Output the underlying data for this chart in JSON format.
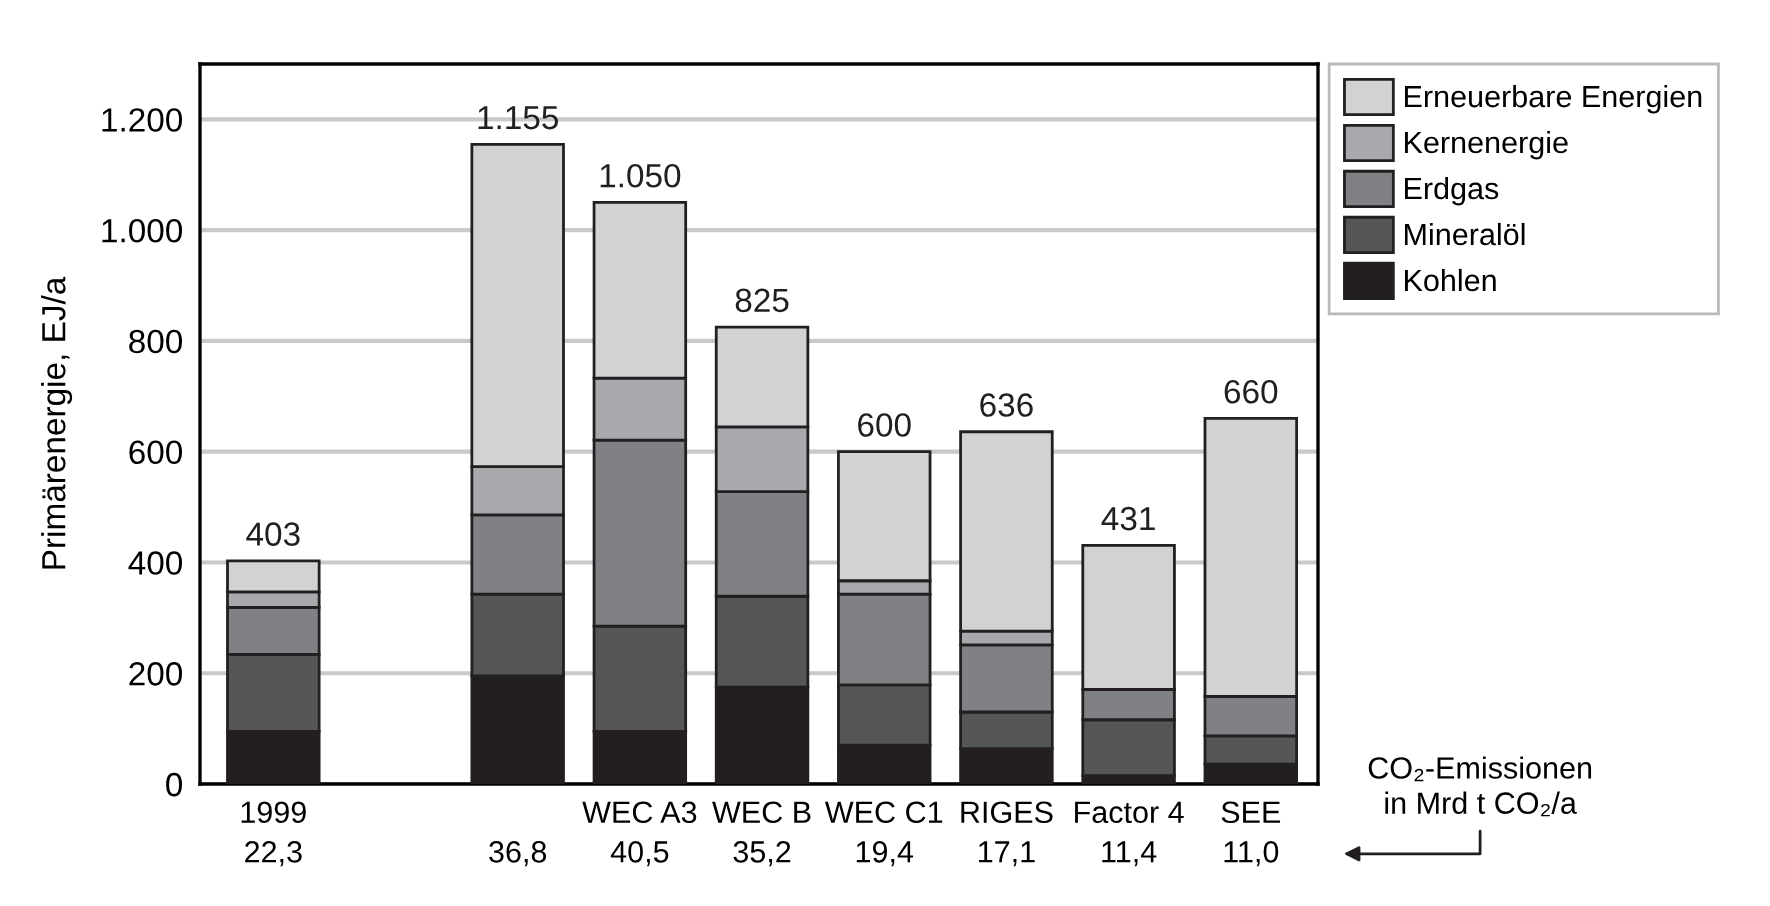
{
  "chart_data": {
    "type": "bar",
    "stacked": true,
    "ylabel": "Primärenergie, EJ/a",
    "categories": [
      "1999\n22,3",
      null,
      "\n36,8",
      "WEC A3\n40,5",
      "WEC B\n35,2",
      "WEC C1\n19,4",
      "RIGES\n17,1",
      "Factor 4\n11,4",
      "SEE\n11,0"
    ],
    "series": [
      {
        "name": "Kohlen",
        "color": "#231f20",
        "values": [
          95,
          null,
          195,
          95,
          175,
          70,
          64,
          15,
          36
        ]
      },
      {
        "name": "Mineralöl",
        "color": "#555658",
        "values": [
          139,
          null,
          148,
          190,
          164,
          109,
          66,
          101,
          51
        ]
      },
      {
        "name": "Erdgas",
        "color": "#808184",
        "values": [
          85,
          null,
          143,
          336,
          189,
          164,
          121,
          55,
          71
        ]
      },
      {
        "name": "Kernenergie",
        "color": "#a8a9ac",
        "values": [
          28,
          null,
          87,
          112,
          117,
          24,
          25,
          0,
          0
        ]
      },
      {
        "name": "Erneuerbare Energien",
        "color": "#d1d2d4",
        "values": [
          56,
          null,
          582,
          317,
          180,
          233,
          360,
          260,
          502
        ]
      }
    ],
    "totals": [
      "403",
      null,
      "1.155",
      "1.050",
      "825",
      "600",
      "636",
      "431",
      "660"
    ],
    "ylim": [
      0,
      1300
    ],
    "yticks": [
      0,
      200,
      400,
      600,
      800,
      {
        "value": 1000,
        "label": "1.000"
      },
      {
        "value": 1200,
        "label": "1.200"
      }
    ],
    "grid": "y",
    "legend": "top right",
    "annotations": [
      "CO₂-Emissionen\nin Mrd t CO₂/a"
    ]
  }
}
